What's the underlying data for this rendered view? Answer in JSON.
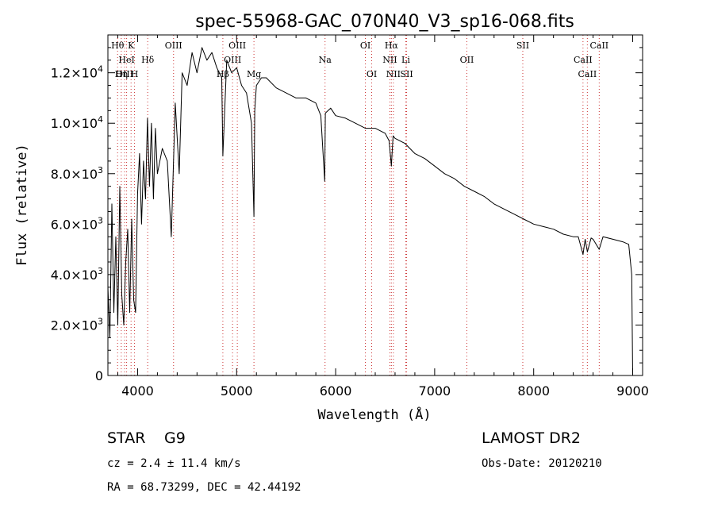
{
  "chart_data": {
    "type": "line",
    "title": "spec-55968-GAC_070N40_V3_sp16-068.fits",
    "xlabel": "Wavelength (Å)",
    "ylabel": "Flux (relative)",
    "xlim": [
      3700,
      9100
    ],
    "ylim": [
      0,
      13500
    ],
    "x_ticks": [
      4000,
      5000,
      6000,
      7000,
      8000,
      9000
    ],
    "x_tick_labels": [
      "4000",
      "5000",
      "6000",
      "7000",
      "8000",
      "9000"
    ],
    "y_ticks": [
      0,
      2000,
      4000,
      6000,
      8000,
      10000,
      12000
    ],
    "y_tick_labels": [
      {
        "mant": "0",
        "exp": ""
      },
      {
        "mant": "2.0×10",
        "exp": "3"
      },
      {
        "mant": "4.0×10",
        "exp": "3"
      },
      {
        "mant": "6.0×10",
        "exp": "3"
      },
      {
        "mant": "8.0×10",
        "exp": "3"
      },
      {
        "mant": "1.0×10",
        "exp": "4"
      },
      {
        "mant": "1.2×10",
        "exp": "4"
      }
    ],
    "series": [
      {
        "color": "#000000",
        "x": [
          3700,
          3720,
          3740,
          3760,
          3780,
          3800,
          3820,
          3840,
          3860,
          3880,
          3900,
          3920,
          3940,
          3960,
          3980,
          4000,
          4020,
          4040,
          4060,
          4080,
          4100,
          4120,
          4140,
          4160,
          4180,
          4200,
          4250,
          4300,
          4340,
          4380,
          4420,
          4450,
          4500,
          4550,
          4600,
          4650,
          4700,
          4750,
          4800,
          4850,
          4861,
          4900,
          4950,
          5000,
          5050,
          5100,
          5150,
          5175,
          5183,
          5200,
          5250,
          5300,
          5400,
          5500,
          5600,
          5700,
          5800,
          5850,
          5890,
          5896,
          5950,
          6000,
          6100,
          6200,
          6300,
          6400,
          6500,
          6540,
          6563,
          6580,
          6600,
          6700,
          6800,
          6900,
          7000,
          7100,
          7200,
          7300,
          7400,
          7500,
          7600,
          7700,
          7800,
          7900,
          8000,
          8100,
          8200,
          8300,
          8400,
          8450,
          8498,
          8520,
          8542,
          8580,
          8600,
          8662,
          8700,
          8800,
          8900,
          8960,
          8990,
          9000
        ],
        "y": [
          3500,
          1500,
          6800,
          2500,
          5500,
          2000,
          7500,
          3200,
          2000,
          4500,
          5800,
          2500,
          6200,
          3000,
          2500,
          7200,
          8800,
          6000,
          8500,
          7000,
          10200,
          7500,
          10000,
          7000,
          9800,
          8000,
          9000,
          8500,
          5500,
          10800,
          8000,
          12000,
          11500,
          12800,
          12000,
          13000,
          12500,
          12800,
          12200,
          11800,
          8700,
          12500,
          12000,
          12200,
          11500,
          11200,
          10000,
          6300,
          10500,
          11500,
          11800,
          11800,
          11400,
          11200,
          11000,
          11000,
          10800,
          10300,
          7700,
          10400,
          10600,
          10300,
          10200,
          10000,
          9800,
          9800,
          9600,
          9300,
          8300,
          9500,
          9400,
          9200,
          8800,
          8600,
          8300,
          8000,
          7800,
          7500,
          7300,
          7100,
          6800,
          6600,
          6400,
          6200,
          6000,
          5900,
          5800,
          5600,
          5500,
          5500,
          4800,
          5400,
          4900,
          5450,
          5400,
          5000,
          5500,
          5400,
          5300,
          5200,
          4000,
          0
        ]
      }
    ],
    "annotations": [
      {
        "label": "Hθ",
        "wave": 3798,
        "row": 1
      },
      {
        "label": "K",
        "wave": 3934,
        "row": 1
      },
      {
        "label": "HeI",
        "wave": 3889,
        "row": 2
      },
      {
        "label": "Hδ",
        "wave": 4102,
        "row": 2
      },
      {
        "label": "OIII",
        "wave": 3869,
        "row": 3
      },
      {
        "label": "Hη",
        "wave": 3835,
        "row": 3
      },
      {
        "label": "H",
        "wave": 3969,
        "row": 3
      },
      {
        "label": "OIII",
        "wave": 4363,
        "row": 1
      },
      {
        "label": "OIII",
        "wave": 5007,
        "row": 1
      },
      {
        "label": "OIII",
        "wave": 4959,
        "row": 2
      },
      {
        "label": "Hβ",
        "wave": 4861,
        "row": 3
      },
      {
        "label": "Mg",
        "wave": 5175,
        "row": 3
      },
      {
        "label": "Na",
        "wave": 5893,
        "row": 2
      },
      {
        "label": "OI",
        "wave": 6300,
        "row": 1
      },
      {
        "label": "OI",
        "wave": 6364,
        "row": 3
      },
      {
        "label": "Hα",
        "wave": 6563,
        "row": 1
      },
      {
        "label": "NII",
        "wave": 6548,
        "row": 2
      },
      {
        "label": "Li",
        "wave": 6708,
        "row": 2
      },
      {
        "label": "NII",
        "wave": 6583,
        "row": 3
      },
      {
        "label": "SII",
        "wave": 6717,
        "row": 3
      },
      {
        "label": "OII",
        "wave": 7325,
        "row": 2
      },
      {
        "label": "SII",
        "wave": 7890,
        "row": 1
      },
      {
        "label": "CaII",
        "wave": 8662,
        "row": 1
      },
      {
        "label": "CaII",
        "wave": 8498,
        "row": 2
      },
      {
        "label": "CaII",
        "wave": 8542,
        "row": 3
      }
    ],
    "line_waves": [
      3798,
      3835,
      3869,
      3889,
      3934,
      3969,
      4102,
      4363,
      4861,
      4959,
      5007,
      5175,
      5893,
      6300,
      6364,
      6548,
      6563,
      6583,
      6708,
      6717,
      7325,
      7890,
      8498,
      8542,
      8662
    ]
  },
  "info": {
    "object_class": "STAR",
    "subclass": "G9",
    "survey": "LAMOST DR2",
    "redshift": "cz = 2.4 ± 11.4 km/s",
    "obs_date": "Obs-Date: 20120210",
    "coords": "RA =  68.73299, DEC =  42.44192"
  }
}
